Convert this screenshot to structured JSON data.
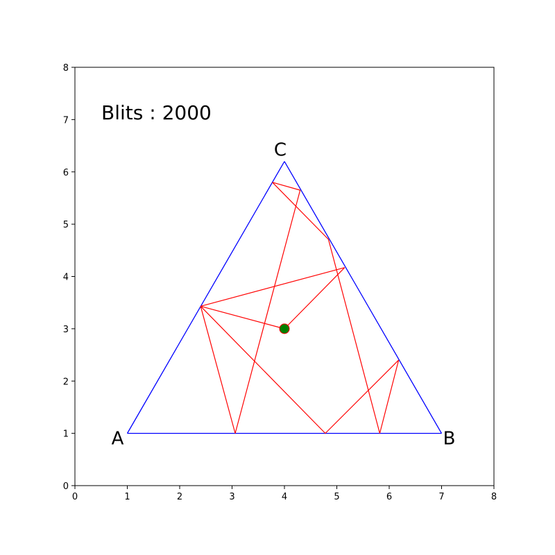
{
  "chart_data": {
    "type": "line",
    "title": "",
    "xlabel": "",
    "ylabel": "",
    "xlim": [
      0,
      8
    ],
    "ylim": [
      0,
      8
    ],
    "xticks": [
      "0",
      "1",
      "2",
      "3",
      "4",
      "5",
      "6",
      "7",
      "8"
    ],
    "yticks": [
      "0",
      "1",
      "2",
      "3",
      "4",
      "5",
      "6",
      "7",
      "8"
    ],
    "grid": false,
    "annotation": "Blits : 2000",
    "colors": {
      "triangle": "#0000ff",
      "path": "#ff0000",
      "point": "#008000"
    },
    "vertices": [
      {
        "label": "A",
        "x": 1,
        "y": 1
      },
      {
        "label": "B",
        "x": 7,
        "y": 1
      },
      {
        "label": "C",
        "x": 4,
        "y": 6.2
      }
    ],
    "series": [
      {
        "kind": "bounce-path",
        "points": [
          [
            4.0,
            3.0
          ],
          [
            5.15,
            4.17
          ],
          [
            2.4,
            3.43
          ],
          [
            3.06,
            1.0
          ],
          [
            4.3,
            5.65
          ],
          [
            3.77,
            5.8
          ],
          [
            4.84,
            4.71
          ],
          [
            5.82,
            1.0
          ],
          [
            6.18,
            2.4
          ],
          [
            4.78,
            1.0
          ],
          [
            2.4,
            3.43
          ],
          [
            4.0,
            3.0
          ]
        ]
      }
    ],
    "start_point": {
      "x": 4.0,
      "y": 3.0
    }
  }
}
